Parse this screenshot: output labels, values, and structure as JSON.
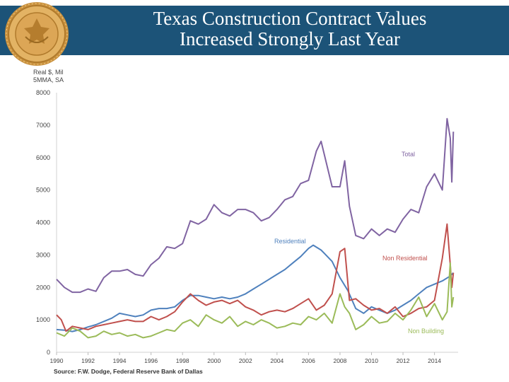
{
  "header": {
    "title_line1": "Texas Construction Contract Values",
    "title_line2": "Increased Strongly Last Year",
    "banner_color": "#1c5378",
    "seal_icon": "federal-reserve-seal-icon"
  },
  "chart_data": {
    "type": "line",
    "title": "Texas Construction Contract Values Increased Strongly Last Year",
    "ylabel_line1": "Real $, Mil",
    "ylabel_line2": "5MMA, SA",
    "ylim": [
      0,
      8000
    ],
    "xlim": [
      1990,
      2015.5
    ],
    "y_ticks": [
      "0",
      "1000",
      "2000",
      "3000",
      "4000",
      "5000",
      "6000",
      "7000",
      "8000"
    ],
    "x_ticks": [
      "1990",
      "1992",
      "1994",
      "1996",
      "1998",
      "2000",
      "2002",
      "2004",
      "2006",
      "2008",
      "2010",
      "2012",
      "2014"
    ],
    "grid": false,
    "legend": "inline labels",
    "series": [
      {
        "name": "Total",
        "color": "#8064a2",
        "points": [
          [
            1990,
            2250
          ],
          [
            1990.5,
            2000
          ],
          [
            1991,
            1850
          ],
          [
            1991.5,
            1850
          ],
          [
            1992,
            1950
          ],
          [
            1992.5,
            1880
          ],
          [
            1993,
            2300
          ],
          [
            1993.5,
            2500
          ],
          [
            1994,
            2500
          ],
          [
            1994.5,
            2550
          ],
          [
            1995,
            2400
          ],
          [
            1995.5,
            2350
          ],
          [
            1996,
            2700
          ],
          [
            1996.5,
            2900
          ],
          [
            1997,
            3250
          ],
          [
            1997.5,
            3200
          ],
          [
            1998,
            3350
          ],
          [
            1998.5,
            4050
          ],
          [
            1999,
            3950
          ],
          [
            1999.5,
            4100
          ],
          [
            2000,
            4550
          ],
          [
            2000.5,
            4300
          ],
          [
            2001,
            4200
          ],
          [
            2001.5,
            4400
          ],
          [
            2002,
            4400
          ],
          [
            2002.5,
            4300
          ],
          [
            2003,
            4050
          ],
          [
            2003.5,
            4150
          ],
          [
            2004,
            4400
          ],
          [
            2004.5,
            4700
          ],
          [
            2005,
            4800
          ],
          [
            2005.5,
            5200
          ],
          [
            2006,
            5300
          ],
          [
            2006.5,
            6200
          ],
          [
            2006.8,
            6500
          ],
          [
            2007,
            6100
          ],
          [
            2007.5,
            5100
          ],
          [
            2008,
            5100
          ],
          [
            2008.3,
            5900
          ],
          [
            2008.6,
            4500
          ],
          [
            2009,
            3600
          ],
          [
            2009.5,
            3500
          ],
          [
            2010,
            3800
          ],
          [
            2010.5,
            3600
          ],
          [
            2011,
            3800
          ],
          [
            2011.5,
            3700
          ],
          [
            2012,
            4100
          ],
          [
            2012.5,
            4400
          ],
          [
            2013,
            4300
          ],
          [
            2013.5,
            5100
          ],
          [
            2014,
            5500
          ],
          [
            2014.5,
            5000
          ],
          [
            2014.8,
            7200
          ],
          [
            2015,
            6600
          ],
          [
            2015.1,
            5250
          ],
          [
            2015.2,
            6800
          ]
        ]
      },
      {
        "name": "Residential",
        "color": "#4f81bd",
        "points": [
          [
            1990,
            700
          ],
          [
            1990.5,
            680
          ],
          [
            1991,
            640
          ],
          [
            1991.5,
            700
          ],
          [
            1992,
            780
          ],
          [
            1992.5,
            850
          ],
          [
            1993,
            950
          ],
          [
            1993.5,
            1050
          ],
          [
            1994,
            1200
          ],
          [
            1994.5,
            1150
          ],
          [
            1995,
            1100
          ],
          [
            1995.5,
            1150
          ],
          [
            1996,
            1300
          ],
          [
            1996.5,
            1350
          ],
          [
            1997,
            1350
          ],
          [
            1997.5,
            1400
          ],
          [
            1998,
            1600
          ],
          [
            1998.5,
            1750
          ],
          [
            1999,
            1750
          ],
          [
            1999.5,
            1700
          ],
          [
            2000,
            1650
          ],
          [
            2000.5,
            1700
          ],
          [
            2001,
            1650
          ],
          [
            2001.5,
            1700
          ],
          [
            2002,
            1800
          ],
          [
            2002.5,
            1950
          ],
          [
            2003,
            2100
          ],
          [
            2003.5,
            2250
          ],
          [
            2004,
            2400
          ],
          [
            2004.5,
            2550
          ],
          [
            2005,
            2750
          ],
          [
            2005.5,
            2950
          ],
          [
            2006,
            3200
          ],
          [
            2006.3,
            3300
          ],
          [
            2006.8,
            3150
          ],
          [
            2007,
            3050
          ],
          [
            2007.5,
            2800
          ],
          [
            2008,
            2300
          ],
          [
            2008.5,
            1900
          ],
          [
            2009,
            1350
          ],
          [
            2009.5,
            1200
          ],
          [
            2010,
            1400
          ],
          [
            2010.5,
            1300
          ],
          [
            2011,
            1200
          ],
          [
            2011.5,
            1300
          ],
          [
            2012,
            1450
          ],
          [
            2012.5,
            1600
          ],
          [
            2013,
            1800
          ],
          [
            2013.5,
            2000
          ],
          [
            2014,
            2100
          ],
          [
            2014.5,
            2200
          ],
          [
            2015,
            2350
          ],
          [
            2015.2,
            2450
          ]
        ]
      },
      {
        "name": "Non Residential",
        "color": "#c0504d",
        "points": [
          [
            1990,
            1150
          ],
          [
            1990.3,
            1000
          ],
          [
            1990.6,
            650
          ],
          [
            1991,
            800
          ],
          [
            1991.5,
            750
          ],
          [
            1992,
            700
          ],
          [
            1992.5,
            800
          ],
          [
            1993,
            850
          ],
          [
            1993.5,
            900
          ],
          [
            1994,
            950
          ],
          [
            1994.5,
            1000
          ],
          [
            1995,
            950
          ],
          [
            1995.5,
            950
          ],
          [
            1996,
            1100
          ],
          [
            1996.5,
            1000
          ],
          [
            1997,
            1100
          ],
          [
            1997.5,
            1250
          ],
          [
            1998,
            1550
          ],
          [
            1998.5,
            1800
          ],
          [
            1999,
            1600
          ],
          [
            1999.5,
            1450
          ],
          [
            2000,
            1550
          ],
          [
            2000.5,
            1600
          ],
          [
            2001,
            1500
          ],
          [
            2001.5,
            1600
          ],
          [
            2002,
            1400
          ],
          [
            2002.5,
            1300
          ],
          [
            2003,
            1150
          ],
          [
            2003.5,
            1250
          ],
          [
            2004,
            1300
          ],
          [
            2004.5,
            1250
          ],
          [
            2005,
            1350
          ],
          [
            2005.5,
            1500
          ],
          [
            2006,
            1650
          ],
          [
            2006.5,
            1300
          ],
          [
            2007,
            1450
          ],
          [
            2007.5,
            1800
          ],
          [
            2008,
            3100
          ],
          [
            2008.3,
            3200
          ],
          [
            2008.6,
            1600
          ],
          [
            2009,
            1650
          ],
          [
            2009.5,
            1450
          ],
          [
            2010,
            1300
          ],
          [
            2010.5,
            1350
          ],
          [
            2011,
            1200
          ],
          [
            2011.5,
            1400
          ],
          [
            2012,
            1100
          ],
          [
            2012.5,
            1200
          ],
          [
            2013,
            1350
          ],
          [
            2013.5,
            1400
          ],
          [
            2014,
            1600
          ],
          [
            2014.5,
            2900
          ],
          [
            2014.8,
            3950
          ],
          [
            2015,
            2700
          ],
          [
            2015.1,
            2000
          ],
          [
            2015.2,
            2450
          ]
        ]
      },
      {
        "name": "Non Building",
        "color": "#9bbb59",
        "points": [
          [
            1990,
            600
          ],
          [
            1990.5,
            500
          ],
          [
            1991,
            750
          ],
          [
            1991.5,
            650
          ],
          [
            1992,
            450
          ],
          [
            1992.5,
            500
          ],
          [
            1993,
            650
          ],
          [
            1993.5,
            550
          ],
          [
            1994,
            600
          ],
          [
            1994.5,
            500
          ],
          [
            1995,
            550
          ],
          [
            1995.5,
            450
          ],
          [
            1996,
            500
          ],
          [
            1996.5,
            600
          ],
          [
            1997,
            700
          ],
          [
            1997.5,
            650
          ],
          [
            1998,
            900
          ],
          [
            1998.5,
            1000
          ],
          [
            1999,
            800
          ],
          [
            1999.5,
            1150
          ],
          [
            2000,
            1000
          ],
          [
            2000.5,
            900
          ],
          [
            2001,
            1100
          ],
          [
            2001.5,
            800
          ],
          [
            2002,
            950
          ],
          [
            2002.5,
            850
          ],
          [
            2003,
            1000
          ],
          [
            2003.5,
            900
          ],
          [
            2004,
            750
          ],
          [
            2004.5,
            800
          ],
          [
            2005,
            900
          ],
          [
            2005.5,
            850
          ],
          [
            2006,
            1100
          ],
          [
            2006.5,
            1000
          ],
          [
            2007,
            1200
          ],
          [
            2007.5,
            900
          ],
          [
            2008,
            1800
          ],
          [
            2008.3,
            1400
          ],
          [
            2008.6,
            1200
          ],
          [
            2009,
            700
          ],
          [
            2009.5,
            850
          ],
          [
            2010,
            1100
          ],
          [
            2010.5,
            900
          ],
          [
            2011,
            950
          ],
          [
            2011.5,
            1200
          ],
          [
            2012,
            1000
          ],
          [
            2012.5,
            1300
          ],
          [
            2013,
            1700
          ],
          [
            2013.5,
            1100
          ],
          [
            2014,
            1500
          ],
          [
            2014.5,
            1000
          ],
          [
            2014.8,
            1250
          ],
          [
            2015,
            2750
          ],
          [
            2015.1,
            1400
          ],
          [
            2015.2,
            1700
          ]
        ]
      }
    ]
  },
  "labels": {
    "total": "Total",
    "residential": "Residential",
    "non_residential": "Non Residential",
    "non_building": "Non Building"
  },
  "source": "Source: F.W. Dodge, Federal Reserve Bank of Dallas"
}
